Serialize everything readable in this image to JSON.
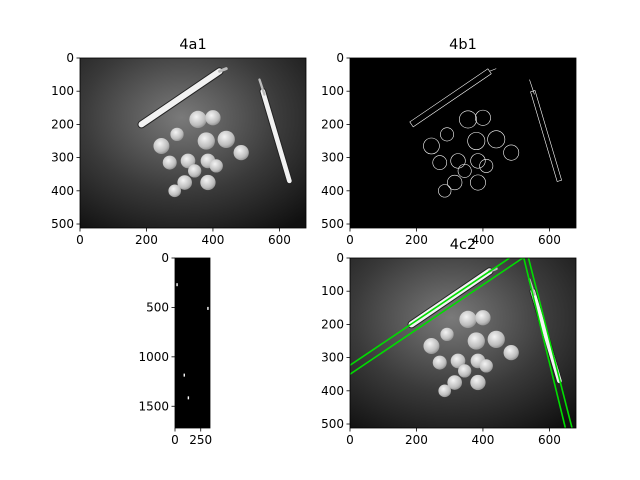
{
  "chart_data": [
    {
      "type": "image",
      "title": "4a1",
      "content": "grayscale photo of coins and two pens on a dark surface",
      "xlim": [
        0,
        680
      ],
      "ylim": [
        512,
        0
      ],
      "xticks": [
        0,
        200,
        400,
        600
      ],
      "yticks": [
        0,
        100,
        200,
        300,
        400,
        500
      ]
    },
    {
      "type": "image",
      "title": "4b1",
      "content": "edge map (white outlines on black) of coins and pens",
      "xlim": [
        0,
        680
      ],
      "ylim": [
        512,
        0
      ],
      "xticks": [
        0,
        200,
        400,
        600
      ],
      "yticks": [
        0,
        100,
        200,
        300,
        400,
        500
      ]
    },
    {
      "type": "image",
      "title": "",
      "content": "Hough accumulator, mostly black with a few bright points",
      "xlim": [
        0,
        340
      ],
      "ylim": [
        1720,
        0
      ],
      "xticks": [
        0,
        250
      ],
      "yticks": [
        0,
        500,
        1000,
        1500
      ],
      "peaks": [
        [
          20,
          270
        ],
        [
          320,
          510
        ],
        [
          90,
          1185
        ],
        [
          130,
          1415
        ]
      ]
    },
    {
      "type": "image",
      "title": "4c2",
      "content": "grayscale photo with detected straight lines overlaid in green",
      "xlim": [
        0,
        680
      ],
      "ylim": [
        512,
        0
      ],
      "xticks": [
        0,
        200,
        400,
        600
      ],
      "yticks": [
        0,
        100,
        200,
        300,
        400,
        500
      ],
      "lines": [
        {
          "x1": 0,
          "y1": 323,
          "x2": 480,
          "y2": 0
        },
        {
          "x1": 0,
          "y1": 350,
          "x2": 520,
          "y2": 0
        },
        {
          "x1": 523,
          "y1": 0,
          "x2": 648,
          "y2": 512
        },
        {
          "x1": 537,
          "y1": 0,
          "x2": 668,
          "y2": 512
        }
      ]
    }
  ],
  "colors": {
    "line_overlay": "#00dd00",
    "background": "#000000",
    "edge": "#ffffff"
  }
}
